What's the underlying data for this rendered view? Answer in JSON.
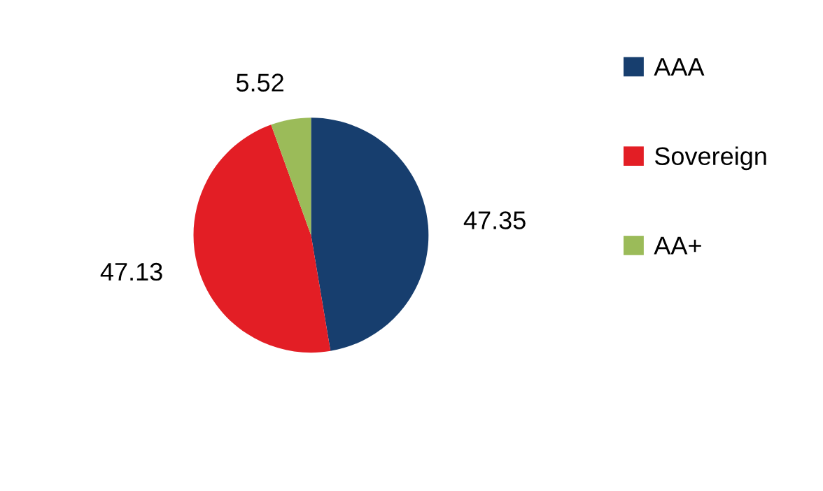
{
  "chart_data": {
    "type": "pie",
    "categories": [
      "AAA",
      "Sovereign",
      "AA+"
    ],
    "values": [
      47.35,
      47.13,
      5.52
    ],
    "colors": [
      "#173e6e",
      "#e31e25",
      "#9bbb59"
    ],
    "data_labels": true,
    "legend": "right"
  }
}
